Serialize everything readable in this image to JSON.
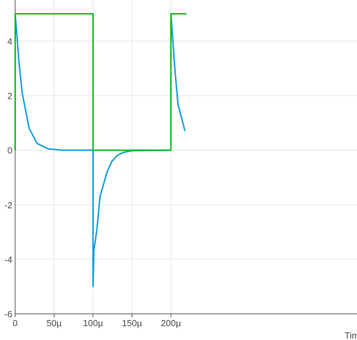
{
  "chart_data": {
    "type": "line",
    "title": "",
    "xlabel": "Time",
    "ylabel": "",
    "xlim": [
      0,
      0.00022
    ],
    "ylim": [
      -6,
      5.5
    ],
    "grid": true,
    "x_ticks": [
      {
        "value": 0,
        "label": "0"
      },
      {
        "value": 5e-05,
        "label": "50µ"
      },
      {
        "value": 0.0001,
        "label": "100µ"
      },
      {
        "value": 0.00015,
        "label": "150µ"
      },
      {
        "value": 0.0002,
        "label": "200µ"
      }
    ],
    "y_ticks": [
      {
        "value": -6,
        "label": "-6"
      },
      {
        "value": -4,
        "label": "-4"
      },
      {
        "value": -2,
        "label": "-2"
      },
      {
        "value": 0,
        "label": "0"
      },
      {
        "value": 2,
        "label": "2"
      },
      {
        "value": 4,
        "label": "4"
      }
    ],
    "series": [
      {
        "color": "#00bb11",
        "x": [
          0,
          0,
          0.0001,
          0.0001,
          0.0002,
          0.0002,
          0.00022
        ],
        "y": [
          0,
          5,
          5,
          0,
          0,
          5,
          5
        ]
      },
      {
        "color": "#0099dd",
        "x": [
          0,
          5e-06,
          9e-06,
          1.8e-05,
          2.8e-05,
          4.2e-05,
          6e-05,
          0.0001,
          0.0001,
          0.000101,
          0.000105,
          0.000109,
          0.000118,
          0.000124,
          0.000131,
          0.000139,
          0.00015,
          0.0002,
          0.0002,
          0.000205,
          0.000209,
          0.000218
        ],
        "y": [
          5,
          3.2,
          2.1,
          0.8,
          0.25,
          0.05,
          0,
          0,
          -5,
          -3.7,
          -2.9,
          -1.7,
          -0.8,
          -0.42,
          -0.2,
          -0.08,
          -0.02,
          0,
          5,
          3.0,
          1.7,
          0.7
        ]
      }
    ]
  }
}
